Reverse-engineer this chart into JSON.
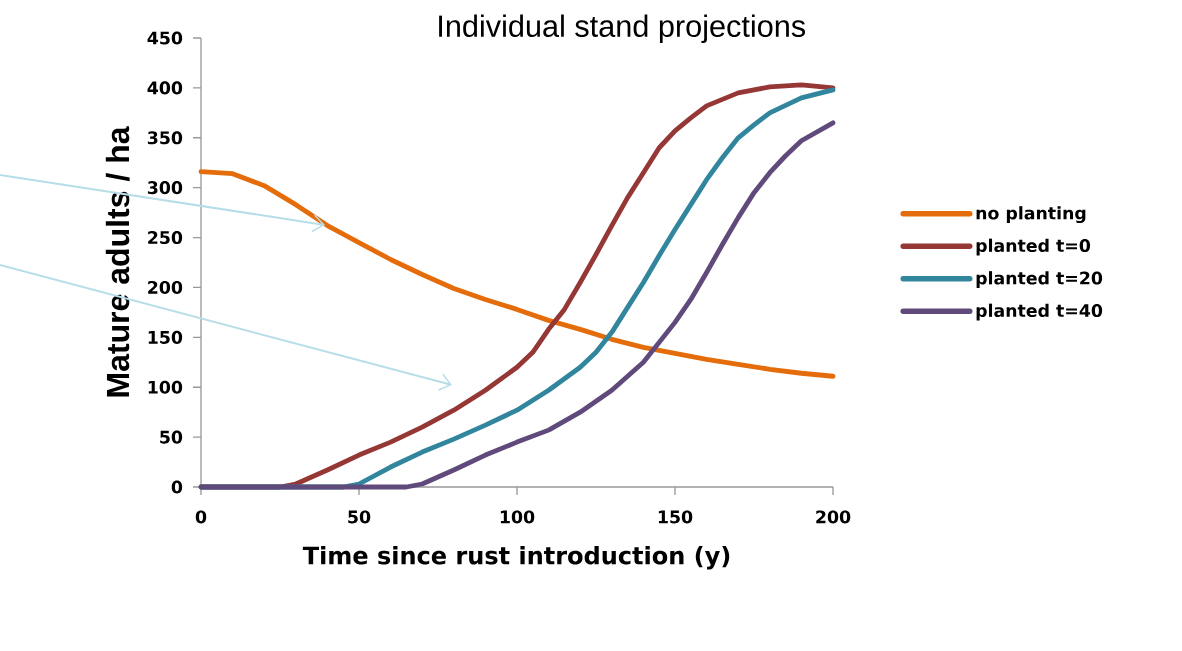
{
  "chart_data": {
    "type": "line",
    "title": "Individual stand projections",
    "xlabel": "Time since rust introduction (y)",
    "ylabel": "Mature adults / ha",
    "xlim": [
      0,
      200
    ],
    "xticks": [
      0,
      50,
      100,
      150,
      200
    ],
    "ylim": [
      0,
      450
    ],
    "yticks": [
      0,
      50,
      100,
      150,
      200,
      250,
      300,
      350,
      400,
      450
    ],
    "grid": false,
    "legend": "right",
    "marker": "none",
    "line_style": "solid",
    "series": [
      {
        "name": "no planting",
        "color": "#e46c0a",
        "x": [
          0,
          10,
          20,
          30,
          40,
          50,
          60,
          70,
          80,
          90,
          100,
          110,
          120,
          130,
          140,
          150,
          160,
          170,
          180,
          190,
          200
        ],
        "values": [
          316,
          314,
          302,
          283,
          262,
          245,
          228,
          213,
          199,
          188,
          178,
          167,
          158,
          148,
          140,
          134,
          128,
          123,
          118,
          114,
          111
        ]
      },
      {
        "name": "planted t=0",
        "color": "#953735",
        "x": [
          0,
          25,
          30,
          40,
          50,
          60,
          70,
          80,
          90,
          100,
          105,
          110,
          115,
          120,
          125,
          130,
          135,
          140,
          145,
          150,
          155,
          160,
          170,
          180,
          190,
          200
        ],
        "values": [
          0,
          0,
          3,
          17,
          32,
          45,
          60,
          77,
          97,
          120,
          135,
          158,
          178,
          205,
          233,
          262,
          290,
          315,
          340,
          357,
          370,
          382,
          395,
          401,
          403,
          400
        ]
      },
      {
        "name": "planted t=20",
        "color": "#31859c",
        "x": [
          0,
          45,
          50,
          60,
          70,
          80,
          90,
          100,
          110,
          120,
          125,
          130,
          135,
          140,
          145,
          150,
          155,
          160,
          165,
          170,
          175,
          180,
          190,
          200
        ],
        "values": [
          0,
          0,
          3,
          20,
          35,
          48,
          62,
          77,
          97,
          120,
          135,
          155,
          180,
          205,
          232,
          258,
          283,
          308,
          330,
          350,
          363,
          375,
          390,
          398
        ]
      },
      {
        "name": "planted t=40",
        "color": "#604a7b",
        "x": [
          0,
          65,
          70,
          80,
          90,
          100,
          110,
          120,
          130,
          140,
          145,
          150,
          155,
          160,
          165,
          170,
          175,
          180,
          185,
          190,
          200
        ],
        "values": [
          0,
          0,
          3,
          17,
          32,
          45,
          57,
          75,
          97,
          125,
          145,
          165,
          188,
          215,
          243,
          270,
          295,
          315,
          332,
          347,
          365
        ]
      }
    ]
  }
}
